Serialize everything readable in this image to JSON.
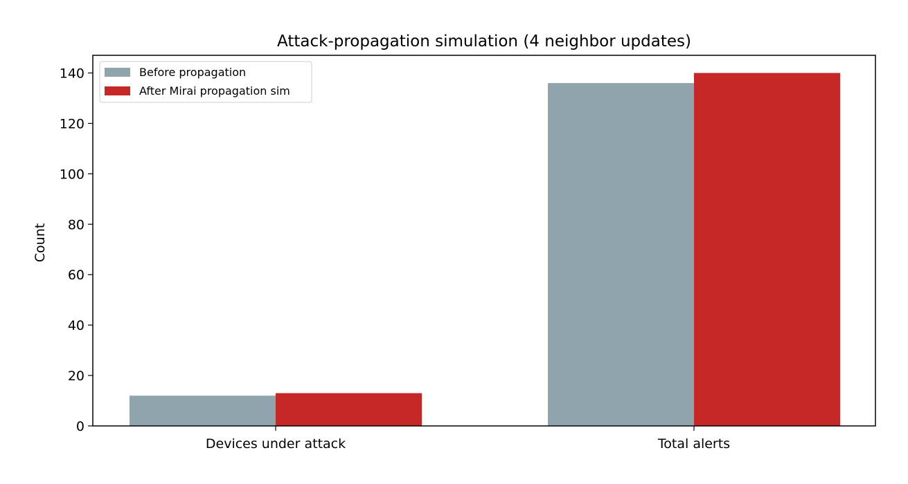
{
  "chart_data": {
    "type": "bar",
    "title": "Attack-propagation simulation (4 neighbor updates)",
    "xlabel": "",
    "ylabel": "Count",
    "categories": [
      "Devices under attack",
      "Total alerts"
    ],
    "series": [
      {
        "name": "Before propagation",
        "values": [
          12,
          136
        ],
        "color": "#90a4ae"
      },
      {
        "name": "After Mirai propagation sim",
        "values": [
          13,
          140
        ],
        "color": "#c62828"
      }
    ],
    "ylim": [
      0,
      147
    ],
    "yticks": [
      0,
      20,
      40,
      60,
      80,
      100,
      120,
      140
    ],
    "grid": false,
    "legend_position": "top-left"
  }
}
